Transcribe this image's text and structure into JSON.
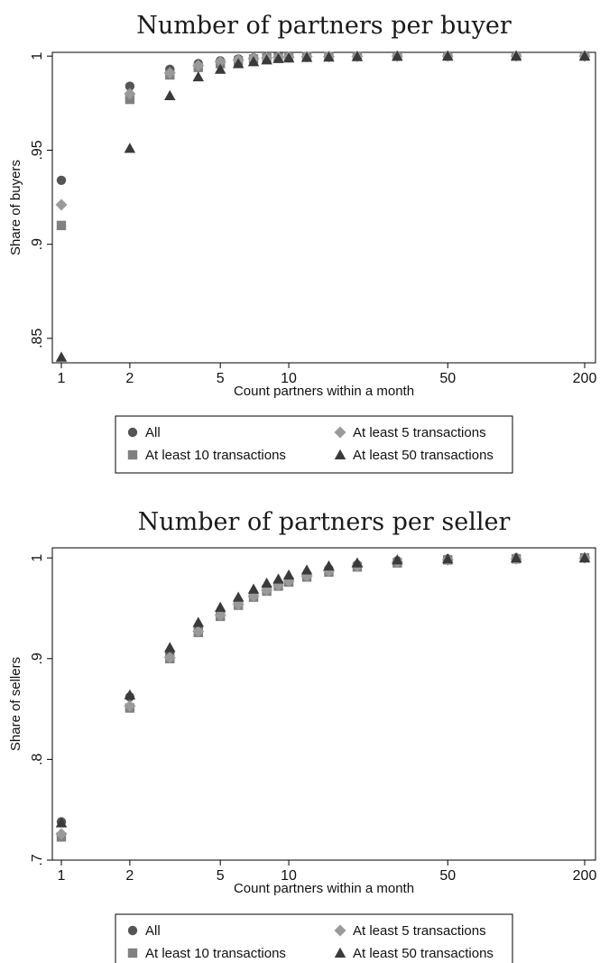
{
  "chart_data": [
    {
      "type": "scatter",
      "title": "Number of partners per buyer",
      "xlabel": "Count partners within a month",
      "ylabel": "Share of buyers",
      "xscale": "log",
      "xlim": [
        1,
        200
      ],
      "ylim": [
        0.837,
        1.002
      ],
      "xticks": [
        1,
        2,
        5,
        10,
        50,
        200
      ],
      "xtick_labels": [
        "1",
        "2",
        "5",
        "10",
        "50",
        "200"
      ],
      "yticks": [
        0.85,
        0.9,
        0.95,
        1
      ],
      "ytick_labels": [
        ".85",
        ".9",
        ".95",
        "1"
      ],
      "grid": false,
      "legend_position": "bottom",
      "legend": [
        "All",
        "At least 5 transactions",
        "At least 10 transactions",
        "At least 50 transactions"
      ],
      "series": [
        {
          "name": "All",
          "marker": "circle",
          "color": "#555555",
          "x": [
            1,
            2,
            3,
            4,
            5,
            6,
            7,
            8,
            9,
            10,
            12,
            15,
            20,
            30,
            50,
            100,
            200
          ],
          "y": [
            0.934,
            0.984,
            0.993,
            0.996,
            0.9975,
            0.9985,
            0.999,
            0.9993,
            0.9995,
            0.9996,
            0.9997,
            0.9998,
            0.9999,
            1.0,
            1.0,
            1.0,
            1.0
          ]
        },
        {
          "name": "At least 5 transactions",
          "marker": "diamond",
          "color": "#9a9a9a",
          "x": [
            1,
            2,
            3,
            4,
            5,
            6,
            7,
            8,
            9,
            10,
            12,
            15,
            20,
            30,
            50,
            100,
            200
          ],
          "y": [
            0.921,
            0.98,
            0.991,
            0.995,
            0.997,
            0.998,
            0.9987,
            0.9991,
            0.9994,
            0.9995,
            0.9997,
            0.9998,
            0.9999,
            1.0,
            1.0,
            1.0,
            1.0
          ]
        },
        {
          "name": "At least 10 transactions",
          "marker": "square",
          "color": "#808080",
          "x": [
            1,
            2,
            3,
            4,
            5,
            6,
            7,
            8,
            9,
            10,
            12,
            15,
            20,
            30,
            50,
            100,
            200
          ],
          "y": [
            0.91,
            0.977,
            0.99,
            0.994,
            0.996,
            0.9975,
            0.9984,
            0.999,
            0.9993,
            0.9995,
            0.9997,
            0.9998,
            0.9999,
            1.0,
            1.0,
            1.0,
            1.0
          ]
        },
        {
          "name": "At least 50 transactions",
          "marker": "triangle",
          "color": "#3a3a3a",
          "x": [
            1,
            2,
            3,
            4,
            5,
            6,
            7,
            8,
            9,
            10,
            12,
            15,
            20,
            30,
            50,
            100,
            200
          ],
          "y": [
            0.84,
            0.951,
            0.979,
            0.989,
            0.993,
            0.996,
            0.997,
            0.998,
            0.9987,
            0.999,
            0.9993,
            0.9995,
            0.9997,
            0.9999,
            1.0,
            1.0,
            1.0
          ]
        }
      ]
    },
    {
      "type": "scatter",
      "title": "Number of partners per seller",
      "xlabel": "Count partners within a month",
      "ylabel": "Share of sellers",
      "xscale": "log",
      "xlim": [
        1,
        200
      ],
      "ylim": [
        0.7,
        1.01
      ],
      "xticks": [
        1,
        2,
        5,
        10,
        50,
        200
      ],
      "xtick_labels": [
        "1",
        "2",
        "5",
        "10",
        "50",
        "200"
      ],
      "yticks": [
        0.7,
        0.8,
        0.9,
        1
      ],
      "ytick_labels": [
        ".7",
        ".8",
        ".9",
        "1"
      ],
      "grid": false,
      "legend_position": "bottom",
      "legend": [
        "All",
        "At least 5 transactions",
        "At least 10 transactions",
        "At least 50 transactions"
      ],
      "series": [
        {
          "name": "All",
          "marker": "circle",
          "color": "#555555",
          "x": [
            1,
            2,
            3,
            4,
            5,
            6,
            7,
            8,
            9,
            10,
            12,
            15,
            20,
            30,
            50,
            100,
            200
          ],
          "y": [
            0.738,
            0.862,
            0.906,
            0.93,
            0.946,
            0.957,
            0.965,
            0.971,
            0.975,
            0.979,
            0.984,
            0.989,
            0.993,
            0.997,
            0.999,
            1.0,
            1.0
          ]
        },
        {
          "name": "At least 5 transactions",
          "marker": "diamond",
          "color": "#9a9a9a",
          "x": [
            1,
            2,
            3,
            4,
            5,
            6,
            7,
            8,
            9,
            10,
            12,
            15,
            20,
            30,
            50,
            100,
            200
          ],
          "y": [
            0.726,
            0.853,
            0.901,
            0.927,
            0.943,
            0.954,
            0.962,
            0.968,
            0.973,
            0.977,
            0.982,
            0.987,
            0.992,
            0.996,
            0.998,
            0.999,
            1.0
          ]
        },
        {
          "name": "At least 10 transactions",
          "marker": "square",
          "color": "#808080",
          "x": [
            1,
            2,
            3,
            4,
            5,
            6,
            7,
            8,
            9,
            10,
            12,
            15,
            20,
            30,
            50,
            100,
            200
          ],
          "y": [
            0.723,
            0.851,
            0.9,
            0.926,
            0.942,
            0.953,
            0.961,
            0.967,
            0.972,
            0.976,
            0.981,
            0.986,
            0.991,
            0.995,
            0.998,
            0.999,
            1.0
          ]
        },
        {
          "name": "At least 50 transactions",
          "marker": "triangle",
          "color": "#3a3a3a",
          "x": [
            1,
            2,
            3,
            4,
            5,
            6,
            7,
            8,
            9,
            10,
            12,
            15,
            20,
            30,
            50,
            100,
            200
          ],
          "y": [
            0.737,
            0.864,
            0.911,
            0.936,
            0.951,
            0.961,
            0.969,
            0.975,
            0.979,
            0.983,
            0.988,
            0.992,
            0.995,
            0.998,
            0.999,
            1.0,
            1.0
          ]
        }
      ]
    }
  ]
}
